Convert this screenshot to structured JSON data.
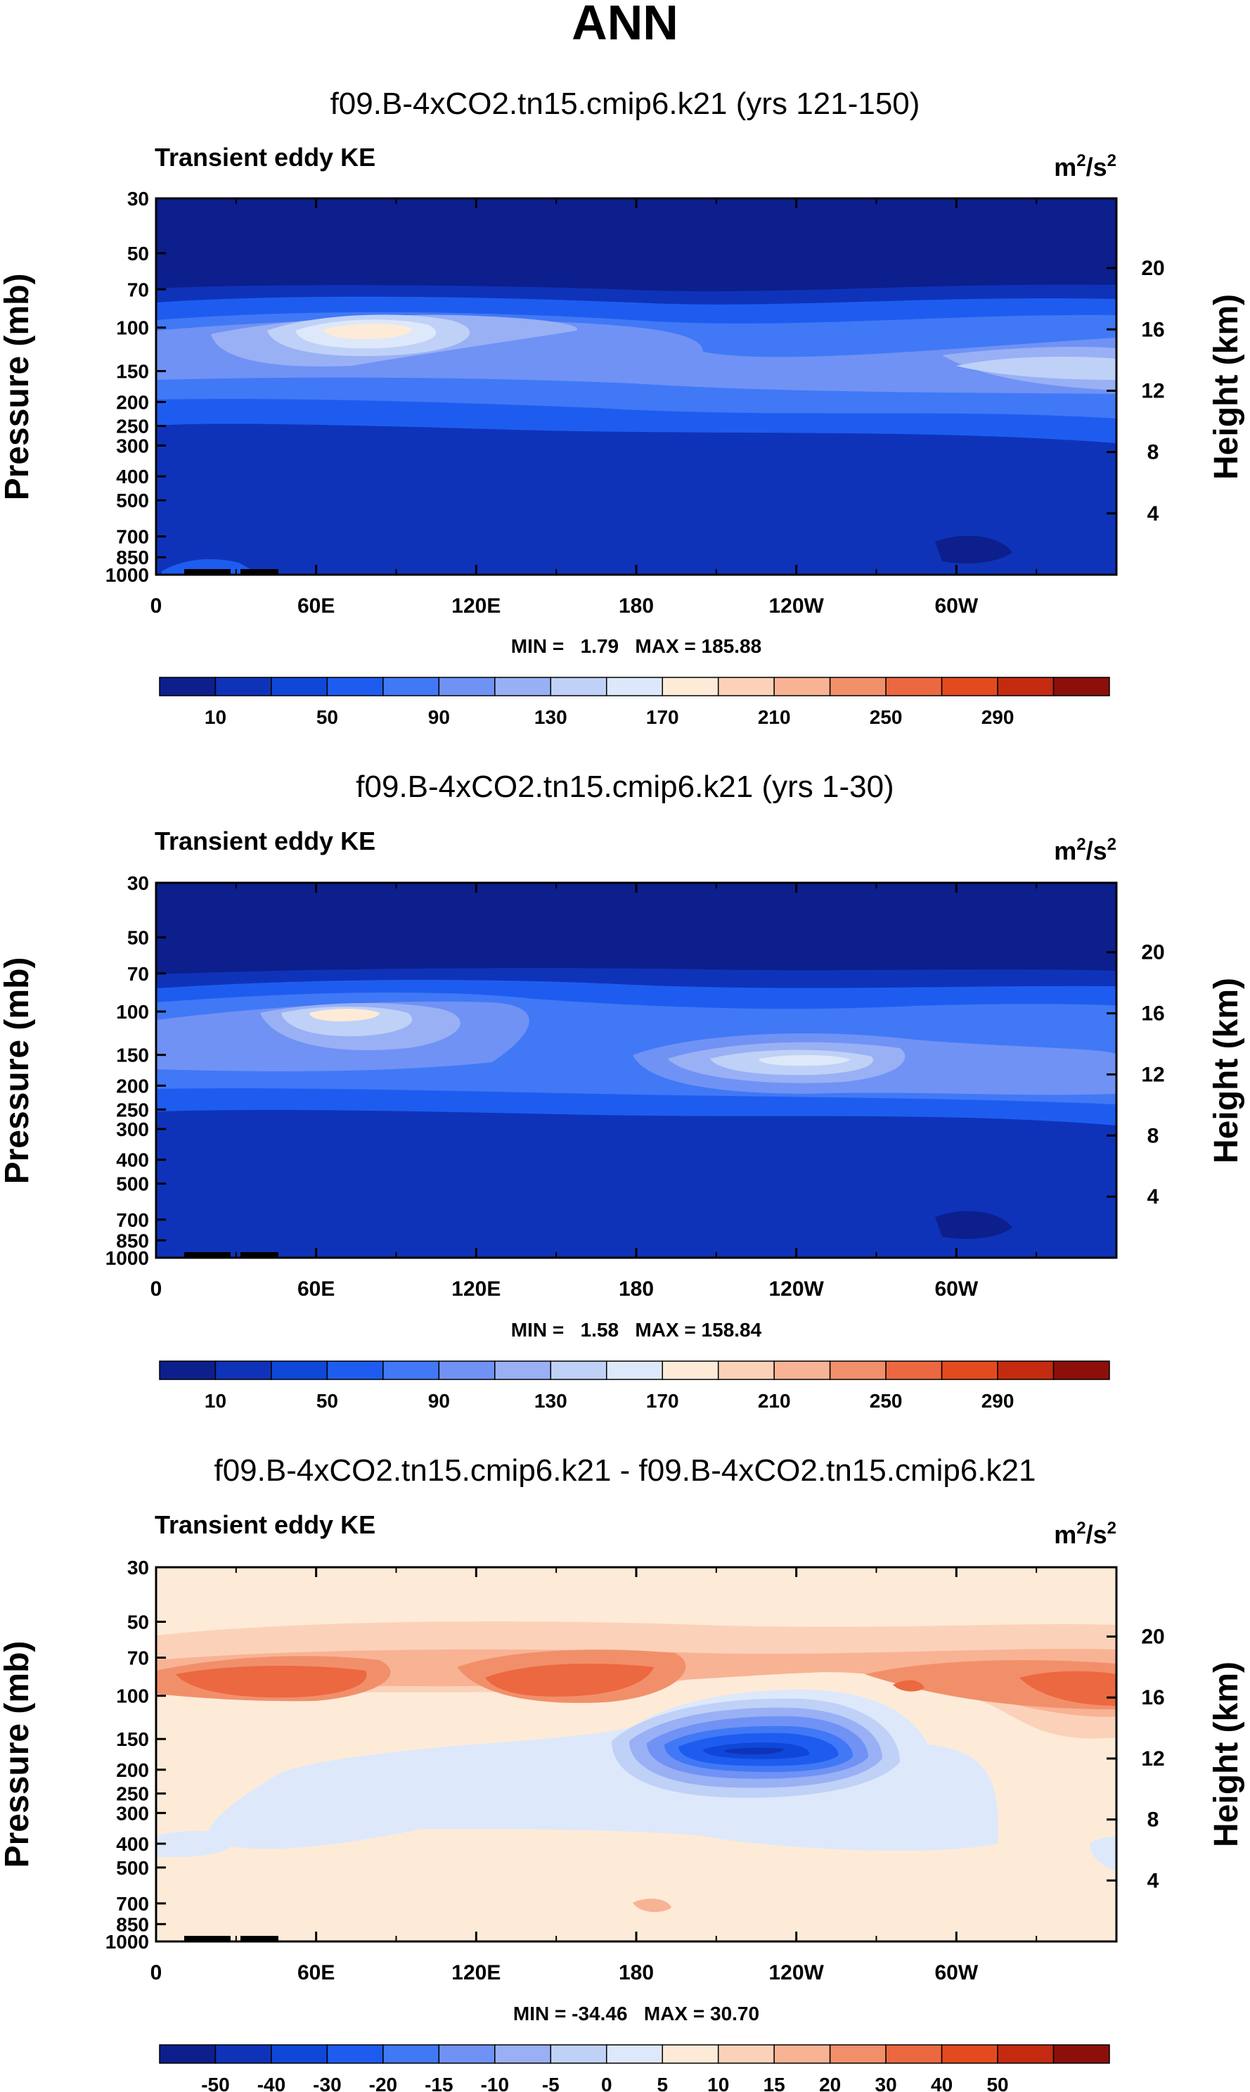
{
  "page_title": "ANN",
  "panels": [
    {
      "title": "f09.B-4xCO2.tn15.cmip6.k21 (yrs 121-150)",
      "left_label": "Transient eddy KE",
      "units_base": "m",
      "units_sup1": "2",
      "units_mid": "/s",
      "units_sup2": "2",
      "ylabel": "Pressure (mb)",
      "y2label": "Height (km)",
      "stats": "MIN =   1.79   MAX = 185.88",
      "colorbar": "abs"
    },
    {
      "title": "f09.B-4xCO2.tn15.cmip6.k21 (yrs 1-30)",
      "left_label": "Transient eddy KE",
      "units_base": "m",
      "units_sup1": "2",
      "units_mid": "/s",
      "units_sup2": "2",
      "ylabel": "Pressure (mb)",
      "y2label": "Height (km)",
      "stats": "MIN =   1.58   MAX = 158.84",
      "colorbar": "abs"
    },
    {
      "title": "f09.B-4xCO2.tn15.cmip6.k21 - f09.B-4xCO2.tn15.cmip6.k21",
      "left_label": "Transient eddy KE",
      "units_base": "m",
      "units_sup1": "2",
      "units_mid": "/s",
      "units_sup2": "2",
      "ylabel": "Pressure (mb)",
      "y2label": "Height (km)",
      "stats": "MIN = -34.46   MAX = 30.70",
      "colorbar": "diff"
    }
  ],
  "chart_data": {
    "type": "heatmap",
    "x_ticks": [
      "0",
      "60E",
      "120E",
      "180",
      "120W",
      "60W"
    ],
    "x_tick_lon": [
      0,
      60,
      120,
      180,
      240,
      300
    ],
    "x_range_lon": [
      0,
      360
    ],
    "p_ticks": [
      "30",
      "50",
      "70",
      "100",
      "150",
      "200",
      "250",
      "300",
      "400",
      "500",
      "700",
      "850",
      "1000"
    ],
    "p_range_mb": [
      30,
      1000
    ],
    "height_ticks": [
      "20",
      "16",
      "12",
      "8",
      "4"
    ],
    "abs_colorbar": {
      "colors": [
        "#0c1f8c",
        "#0f33b8",
        "#0f47d9",
        "#1e5cf0",
        "#4178f5",
        "#7092f5",
        "#99b0f5",
        "#bfd1f7",
        "#dde8fa",
        "#fdebd8",
        "#fbd2b9",
        "#f8b394",
        "#f28f6b",
        "#ec6840",
        "#e34a1f",
        "#c42b10",
        "#8c0f0a"
      ],
      "labels": [
        "10",
        "50",
        "90",
        "130",
        "170",
        "210",
        "250",
        "290"
      ]
    },
    "diff_colorbar": {
      "colors": [
        "#0c1f8c",
        "#0f33b8",
        "#0f47d9",
        "#1e5cf0",
        "#4178f5",
        "#7092f5",
        "#99b0f5",
        "#bfd1f7",
        "#dde8fa",
        "#fdebd8",
        "#fbd2b9",
        "#f8b394",
        "#f28f6b",
        "#ec6840",
        "#e34a1f",
        "#c42b10",
        "#8c0f0a"
      ],
      "labels": [
        "-50",
        "-40",
        "-30",
        "-20",
        "-15",
        "-10",
        "-5",
        "0",
        "5",
        "10",
        "15",
        "20",
        "30",
        "40",
        "50"
      ]
    }
  }
}
